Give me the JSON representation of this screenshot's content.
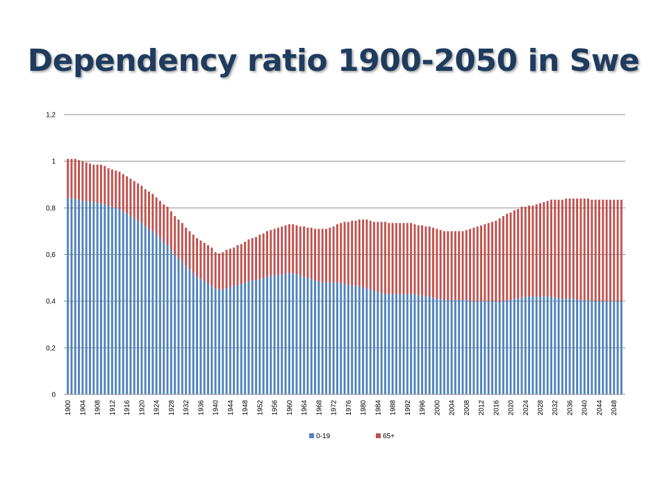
{
  "slide": {
    "title": "Dependency ratio 1900-2050 in Swe"
  },
  "chart_data": {
    "type": "bar",
    "stacked": true,
    "title": "",
    "xlabel": "",
    "ylabel": "",
    "ylim": [
      0,
      1.2
    ],
    "y_ticks": [
      "0",
      "0,2",
      "0,4",
      "0,6",
      "0,8",
      "1",
      "1,2"
    ],
    "y_tick_values": [
      0,
      0.2,
      0.4,
      0.6,
      0.8,
      1,
      1.2
    ],
    "x_tick_labels": [
      "1900",
      "1904",
      "1908",
      "1912",
      "1916",
      "1920",
      "1924",
      "1928",
      "1932",
      "1936",
      "1940",
      "1944",
      "1948",
      "1952",
      "1956",
      "1960",
      "1964",
      "1968",
      "1972",
      "1976",
      "1980",
      "1984",
      "1988",
      "1992",
      "1996",
      "2000",
      "2004",
      "2008",
      "2012",
      "2016",
      "2020",
      "2024",
      "2028",
      "2032",
      "2036",
      "2040",
      "2044",
      "2048"
    ],
    "grid": true,
    "legend_position": "bottom",
    "colors": {
      "0-19": "#4f81bd",
      "65+": "#c0504d"
    },
    "categories": [
      1900,
      1901,
      1902,
      1903,
      1904,
      1905,
      1906,
      1907,
      1908,
      1909,
      1910,
      1911,
      1912,
      1913,
      1914,
      1915,
      1916,
      1917,
      1918,
      1919,
      1920,
      1921,
      1922,
      1923,
      1924,
      1925,
      1926,
      1927,
      1928,
      1929,
      1930,
      1931,
      1932,
      1933,
      1934,
      1935,
      1936,
      1937,
      1938,
      1939,
      1940,
      1941,
      1942,
      1943,
      1944,
      1945,
      1946,
      1947,
      1948,
      1949,
      1950,
      1951,
      1952,
      1953,
      1954,
      1955,
      1956,
      1957,
      1958,
      1959,
      1960,
      1961,
      1962,
      1963,
      1964,
      1965,
      1966,
      1967,
      1968,
      1969,
      1970,
      1971,
      1972,
      1973,
      1974,
      1975,
      1976,
      1977,
      1978,
      1979,
      1980,
      1981,
      1982,
      1983,
      1984,
      1985,
      1986,
      1987,
      1988,
      1989,
      1990,
      1991,
      1992,
      1993,
      1994,
      1995,
      1996,
      1997,
      1998,
      1999,
      2000,
      2001,
      2002,
      2003,
      2004,
      2005,
      2006,
      2007,
      2008,
      2009,
      2010,
      2011,
      2012,
      2013,
      2014,
      2015,
      2016,
      2017,
      2018,
      2019,
      2020,
      2021,
      2022,
      2023,
      2024,
      2025,
      2026,
      2027,
      2028,
      2029,
      2030,
      2031,
      2032,
      2033,
      2034,
      2035,
      2036,
      2037,
      2038,
      2039,
      2040,
      2041,
      2042,
      2043,
      2044,
      2045,
      2046,
      2047,
      2048,
      2049,
      2050
    ],
    "series": [
      {
        "name": "0-19",
        "values": [
          0.84,
          0.84,
          0.84,
          0.835,
          0.83,
          0.83,
          0.825,
          0.825,
          0.82,
          0.82,
          0.815,
          0.81,
          0.805,
          0.8,
          0.795,
          0.785,
          0.775,
          0.765,
          0.755,
          0.745,
          0.735,
          0.72,
          0.71,
          0.7,
          0.685,
          0.67,
          0.655,
          0.64,
          0.62,
          0.6,
          0.585,
          0.57,
          0.55,
          0.535,
          0.52,
          0.505,
          0.495,
          0.485,
          0.475,
          0.465,
          0.455,
          0.45,
          0.45,
          0.455,
          0.46,
          0.465,
          0.47,
          0.475,
          0.48,
          0.485,
          0.49,
          0.49,
          0.495,
          0.5,
          0.505,
          0.51,
          0.51,
          0.515,
          0.515,
          0.52,
          0.52,
          0.52,
          0.515,
          0.51,
          0.505,
          0.5,
          0.495,
          0.49,
          0.485,
          0.48,
          0.48,
          0.48,
          0.48,
          0.48,
          0.475,
          0.475,
          0.47,
          0.47,
          0.465,
          0.465,
          0.46,
          0.455,
          0.45,
          0.445,
          0.44,
          0.435,
          0.43,
          0.43,
          0.43,
          0.43,
          0.43,
          0.43,
          0.43,
          0.43,
          0.43,
          0.425,
          0.425,
          0.42,
          0.42,
          0.415,
          0.41,
          0.41,
          0.405,
          0.405,
          0.405,
          0.405,
          0.405,
          0.405,
          0.405,
          0.4,
          0.4,
          0.4,
          0.4,
          0.4,
          0.4,
          0.4,
          0.4,
          0.4,
          0.4,
          0.405,
          0.405,
          0.41,
          0.41,
          0.415,
          0.42,
          0.42,
          0.42,
          0.42,
          0.42,
          0.42,
          0.42,
          0.42,
          0.415,
          0.415,
          0.41,
          0.41,
          0.41,
          0.41,
          0.405,
          0.405,
          0.405,
          0.405,
          0.4,
          0.4,
          0.4,
          0.4,
          0.4,
          0.4,
          0.4,
          0.4,
          0.4
        ]
      },
      {
        "name": "65+",
        "values": [
          0.17,
          0.17,
          0.17,
          0.17,
          0.17,
          0.165,
          0.165,
          0.16,
          0.165,
          0.165,
          0.165,
          0.16,
          0.16,
          0.16,
          0.16,
          0.16,
          0.16,
          0.16,
          0.16,
          0.16,
          0.16,
          0.16,
          0.16,
          0.16,
          0.16,
          0.16,
          0.16,
          0.165,
          0.165,
          0.165,
          0.165,
          0.165,
          0.165,
          0.165,
          0.165,
          0.165,
          0.165,
          0.165,
          0.165,
          0.165,
          0.155,
          0.155,
          0.16,
          0.165,
          0.165,
          0.165,
          0.17,
          0.17,
          0.175,
          0.18,
          0.18,
          0.185,
          0.19,
          0.19,
          0.195,
          0.195,
          0.2,
          0.2,
          0.205,
          0.205,
          0.21,
          0.21,
          0.21,
          0.21,
          0.215,
          0.215,
          0.22,
          0.22,
          0.225,
          0.23,
          0.23,
          0.235,
          0.24,
          0.25,
          0.26,
          0.265,
          0.27,
          0.275,
          0.28,
          0.285,
          0.29,
          0.295,
          0.295,
          0.295,
          0.3,
          0.305,
          0.31,
          0.305,
          0.305,
          0.305,
          0.305,
          0.305,
          0.305,
          0.305,
          0.3,
          0.3,
          0.3,
          0.3,
          0.3,
          0.3,
          0.3,
          0.295,
          0.295,
          0.295,
          0.295,
          0.295,
          0.295,
          0.295,
          0.3,
          0.31,
          0.315,
          0.32,
          0.325,
          0.33,
          0.335,
          0.34,
          0.345,
          0.355,
          0.365,
          0.37,
          0.375,
          0.38,
          0.385,
          0.39,
          0.385,
          0.39,
          0.39,
          0.395,
          0.4,
          0.405,
          0.41,
          0.415,
          0.42,
          0.42,
          0.425,
          0.43,
          0.43,
          0.43,
          0.435,
          0.435,
          0.435,
          0.435,
          0.435,
          0.435,
          0.435,
          0.435,
          0.435,
          0.435,
          0.435,
          0.435,
          0.435
        ]
      }
    ]
  }
}
